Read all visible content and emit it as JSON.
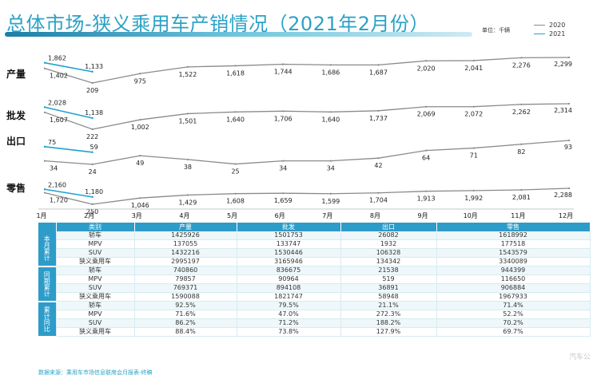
{
  "title": "总体市场-狭义乘用车产销情况（2021年2月份）",
  "unit_label": "单位：千辆",
  "legend": [
    {
      "name": "2020",
      "color": "#8a8a8a"
    },
    {
      "name": "2021",
      "color": "#1fa2cf"
    }
  ],
  "source_note": "数据来源：乘用车市场信息联席会月报表-终稿",
  "watermark_text": "汽车公",
  "chart_data": {
    "type": "line",
    "subtype": "stacked-panels",
    "x": [
      "1月",
      "2月",
      "3月",
      "4月",
      "5月",
      "6月",
      "7月",
      "8月",
      "9月",
      "10月",
      "11月",
      "12月"
    ],
    "unit": "千辆",
    "panels": [
      {
        "name": "产量",
        "series_2020": [
          1402,
          209,
          975,
          1522,
          1618,
          1744,
          1686,
          1687,
          2020,
          2041,
          2276,
          2299
        ],
        "series_2021": [
          1862,
          1133
        ],
        "labels_2020": [
          "1,402",
          "209",
          "975",
          "1,522",
          "1,618",
          "1,744",
          "1,686",
          "1,687",
          "2,020",
          "2,041",
          "2,276",
          "2,299"
        ],
        "labels_2021": [
          "1,862",
          "1,133"
        ]
      },
      {
        "name": "批发",
        "series_2020": [
          1607,
          222,
          1002,
          1501,
          1640,
          1706,
          1640,
          1737,
          2069,
          2072,
          2262,
          2314
        ],
        "series_2021": [
          2028,
          1138
        ],
        "labels_2020": [
          "1,607",
          "222",
          "1,002",
          "1,501",
          "1,640",
          "1,706",
          "1,640",
          "1,737",
          "2,069",
          "2,072",
          "2,262",
          "2,314"
        ],
        "labels_2021": [
          "2,028",
          "1,138"
        ]
      },
      {
        "name": "出口",
        "series_2020": [
          34,
          24,
          49,
          38,
          25,
          34,
          34,
          42,
          64,
          71,
          82,
          93
        ],
        "series_2021": [
          75,
          59
        ],
        "labels_2020": [
          "34",
          "24",
          "49",
          "38",
          "25",
          "34",
          "34",
          "42",
          "64",
          "71",
          "82",
          "93"
        ],
        "labels_2021": [
          "75",
          "59"
        ]
      },
      {
        "name": "零售",
        "series_2020": [
          1720,
          250,
          1046,
          1429,
          1608,
          1659,
          1599,
          1704,
          1913,
          1992,
          2081,
          2288
        ],
        "series_2021": [
          2160,
          1180
        ],
        "labels_2020": [
          "1,720",
          "250",
          "1,046",
          "1,429",
          "1,608",
          "1,659",
          "1,599",
          "1,704",
          "1,913",
          "1,992",
          "2,081",
          "2,288"
        ],
        "labels_2021": [
          "2,160",
          "1,180"
        ]
      }
    ]
  },
  "table": {
    "headers": [
      "类别",
      "产量",
      "批发",
      "出口",
      "零售"
    ],
    "groups": [
      {
        "label": "本月累计",
        "rows": [
          {
            "cat": "轿车",
            "prod": "1425926",
            "whole": "1501753",
            "exp": "26082",
            "retail": "1618992"
          },
          {
            "cat": "MPV",
            "prod": "137055",
            "whole": "133747",
            "exp": "1932",
            "retail": "177518"
          },
          {
            "cat": "SUV",
            "prod": "1432216",
            "whole": "1530446",
            "exp": "106328",
            "retail": "1543579"
          },
          {
            "cat": "狭义乘用车",
            "prod": "2995197",
            "whole": "3165946",
            "exp": "134342",
            "retail": "3340089"
          }
        ]
      },
      {
        "label": "同期累计",
        "rows": [
          {
            "cat": "轿车",
            "prod": "740860",
            "whole": "836675",
            "exp": "21538",
            "retail": "944399"
          },
          {
            "cat": "MPV",
            "prod": "79857",
            "whole": "90964",
            "exp": "519",
            "retail": "116650"
          },
          {
            "cat": "SUV",
            "prod": "769371",
            "whole": "894108",
            "exp": "36891",
            "retail": "906884"
          },
          {
            "cat": "狭义乘用车",
            "prod": "1590088",
            "whole": "1821747",
            "exp": "58948",
            "retail": "1967933"
          }
        ]
      },
      {
        "label": "累计同比",
        "rows": [
          {
            "cat": "轿车",
            "prod": "92.5%",
            "whole": "79.5%",
            "exp": "21.1%",
            "retail": "71.4%"
          },
          {
            "cat": "MPV",
            "prod": "71.6%",
            "whole": "47.0%",
            "exp": "272.3%",
            "retail": "52.2%"
          },
          {
            "cat": "SUV",
            "prod": "86.2%",
            "whole": "71.2%",
            "exp": "188.2%",
            "retail": "70.2%"
          },
          {
            "cat": "狭义乘用车",
            "prod": "88.4%",
            "whole": "73.8%",
            "exp": "127.9%",
            "retail": "69.7%"
          }
        ]
      }
    ]
  }
}
